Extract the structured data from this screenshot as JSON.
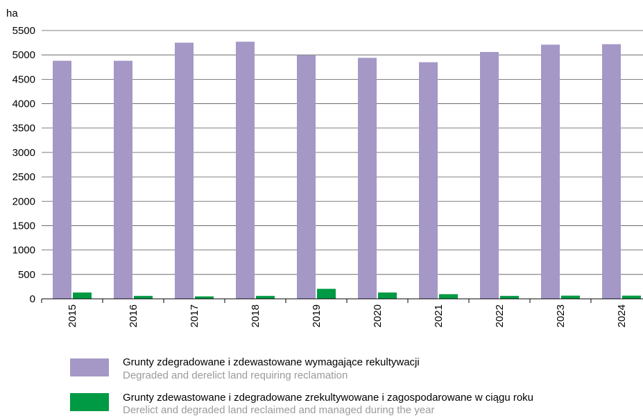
{
  "chart_data": {
    "type": "bar",
    "unit_label": "ha",
    "categories": [
      "2015",
      "2016",
      "2017",
      "2018",
      "2019",
      "2020",
      "2021",
      "2022",
      "2023",
      "2024"
    ],
    "series": [
      {
        "name": "Grunty zdegradowane i zdewastowane wymagające rekultywacji",
        "name_en": "Degraded and derelict land requiring reclamation",
        "color": "#a598c7",
        "values": [
          4880,
          4880,
          5250,
          5270,
          4990,
          4940,
          4850,
          5060,
          5210,
          5220
        ]
      },
      {
        "name": "Grunty zdewastowane i zdegradowane zrekultywowane i zagospodarowane w ciągu roku",
        "name_en": "Derelict and degraded land reclaimed and managed during the year",
        "color": "#009a44",
        "values": [
          130,
          60,
          50,
          60,
          205,
          130,
          95,
          60,
          65,
          65
        ]
      }
    ],
    "y_ticks": [
      "0",
      "500",
      "1000",
      "1500",
      "2000",
      "2500",
      "3000",
      "3500",
      "4000",
      "4500",
      "5000",
      "5500"
    ],
    "ylim": [
      0,
      5500
    ],
    "grid": true,
    "legend_position": "bottom"
  }
}
